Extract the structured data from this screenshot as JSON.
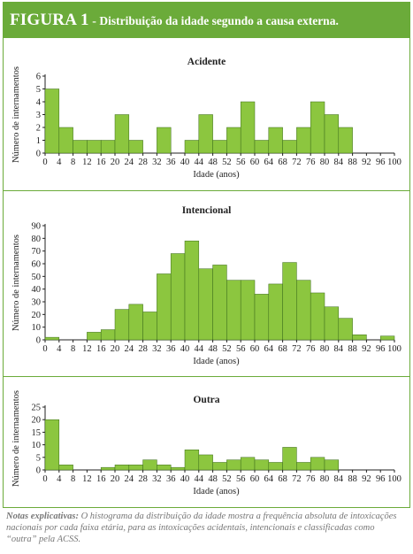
{
  "figure": {
    "label": "FIGURA 1",
    "separator": " - ",
    "caption": "Distribuição da idade segundo a causa externa."
  },
  "notes": {
    "label": "Notas explicativas:",
    "text": " O histograma da distribuição da idade mostra a frequência absoluta de intoxicações nacionais por cada faixa etária, para as intoxicações acidentais, intencionais e classificadas como “outra” pela ACSS."
  },
  "colors": {
    "bar_fill": "#8cc63f",
    "bar_stroke": "#3a6b1a",
    "accent": "#6bab3a",
    "notes_text": "#777777"
  },
  "chart_data": [
    {
      "type": "bar",
      "title": "Acidente",
      "xlabel": "Idade (anos)",
      "ylabel": "Número de internamentos",
      "bin_width": 4,
      "x_ticks": [
        0,
        4,
        8,
        12,
        16,
        20,
        24,
        28,
        32,
        36,
        40,
        44,
        48,
        52,
        56,
        60,
        64,
        68,
        72,
        76,
        80,
        84,
        88,
        92,
        96,
        100
      ],
      "y_ticks": [
        0,
        1,
        2,
        3,
        4,
        5,
        6
      ],
      "xlim": [
        0,
        100
      ],
      "ylim": [
        0,
        6
      ],
      "bin_starts": [
        0,
        4,
        8,
        12,
        16,
        20,
        24,
        28,
        32,
        36,
        40,
        44,
        48,
        52,
        56,
        60,
        64,
        68,
        72,
        76,
        80,
        84,
        88,
        92,
        96
      ],
      "values": [
        5,
        2,
        1,
        1,
        1,
        3,
        1,
        0,
        2,
        0,
        1,
        3,
        1,
        2,
        4,
        1,
        2,
        1,
        2,
        4,
        3,
        2,
        0,
        0,
        0
      ]
    },
    {
      "type": "bar",
      "title": "Intencional",
      "xlabel": "Idade (anos)",
      "ylabel": "Número de internamentos",
      "bin_width": 4,
      "x_ticks": [
        0,
        4,
        8,
        12,
        16,
        20,
        24,
        28,
        32,
        36,
        40,
        44,
        48,
        52,
        56,
        60,
        64,
        68,
        72,
        76,
        80,
        84,
        88,
        92,
        96,
        100
      ],
      "y_ticks": [
        0,
        10,
        20,
        30,
        40,
        50,
        60,
        70,
        80,
        90
      ],
      "xlim": [
        0,
        100
      ],
      "ylim": [
        0,
        90
      ],
      "bin_starts": [
        0,
        4,
        8,
        12,
        16,
        20,
        24,
        28,
        32,
        36,
        40,
        44,
        48,
        52,
        56,
        60,
        64,
        68,
        72,
        76,
        80,
        84,
        88,
        92,
        96
      ],
      "values": [
        2,
        0,
        0,
        6,
        8,
        24,
        28,
        22,
        52,
        68,
        78,
        56,
        59,
        47,
        47,
        36,
        44,
        61,
        47,
        37,
        26,
        17,
        4,
        0,
        3
      ]
    },
    {
      "type": "bar",
      "title": "Outra",
      "xlabel": "Idade (anos)",
      "ylabel": "Número de internamentos",
      "bin_width": 4,
      "x_ticks": [
        0,
        4,
        8,
        12,
        16,
        20,
        24,
        28,
        32,
        36,
        40,
        44,
        48,
        52,
        56,
        60,
        64,
        68,
        72,
        76,
        80,
        84,
        88,
        92,
        96,
        100
      ],
      "y_ticks": [
        0,
        5,
        10,
        15,
        20,
        25
      ],
      "xlim": [
        0,
        100
      ],
      "ylim": [
        0,
        25
      ],
      "bin_starts": [
        0,
        4,
        8,
        12,
        16,
        20,
        24,
        28,
        32,
        36,
        40,
        44,
        48,
        52,
        56,
        60,
        64,
        68,
        72,
        76,
        80,
        84,
        88,
        92,
        96
      ],
      "values": [
        20,
        2,
        0,
        0,
        1,
        2,
        2,
        4,
        2,
        1,
        8,
        6,
        3,
        4,
        5,
        4,
        3,
        9,
        3,
        5,
        4,
        0,
        0,
        0,
        0
      ]
    }
  ]
}
